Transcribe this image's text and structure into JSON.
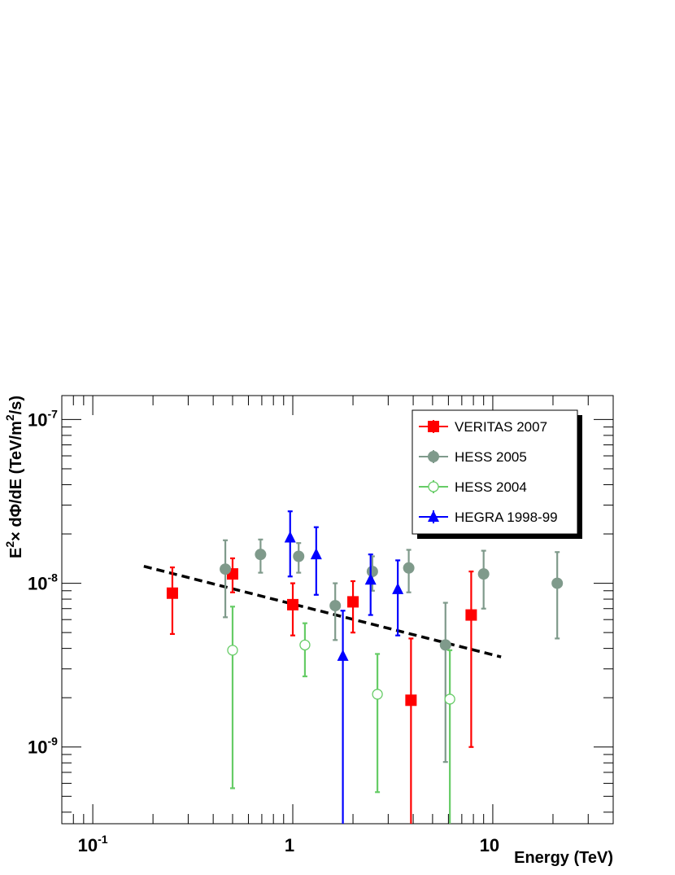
{
  "chart_data": {
    "type": "scatter",
    "x_scale": "log",
    "y_scale": "log",
    "xlim": [
      0.07,
      40
    ],
    "ylim": [
      3.4e-10,
      1.4e-07
    ],
    "xlabel": "Energy (TeV)",
    "ylabel": {
      "prefix": "E",
      "sup1": "2",
      "middle": "× dΦ/dE (TeV/m",
      "sup2": "2",
      "suffix": "/s)"
    },
    "x_ticks": [
      {
        "value": 0.1,
        "base": "10",
        "exp": "-1"
      },
      {
        "value": 1,
        "base": "1",
        "exp": ""
      },
      {
        "value": 10,
        "base": "10",
        "exp": ""
      }
    ],
    "y_ticks": [
      {
        "value": 1e-07,
        "base": "10",
        "exp": "-7"
      },
      {
        "value": 1e-08,
        "base": "10",
        "exp": "-8"
      },
      {
        "value": 1e-09,
        "base": "10",
        "exp": "-9"
      }
    ],
    "legend_position": "top-right",
    "series": [
      {
        "name": "VERITAS 2007",
        "color": "#ff0000",
        "marker": "square-filled",
        "points": [
          {
            "x": 0.25,
            "y": 8.7e-09,
            "lo": 4.9e-09,
            "hi": 1.25e-08
          },
          {
            "x": 0.5,
            "y": 1.14e-08,
            "lo": 8.8e-09,
            "hi": 1.42e-08
          },
          {
            "x": 1.0,
            "y": 7.4e-09,
            "lo": 4.8e-09,
            "hi": 1e-08
          },
          {
            "x": 2.0,
            "y": 7.7e-09,
            "lo": 5e-09,
            "hi": 1.03e-08
          },
          {
            "x": 3.9,
            "y": 1.93e-09,
            "lo": 3.4e-10,
            "hi": 4.6e-09
          },
          {
            "x": 7.8,
            "y": 6.4e-09,
            "lo": 1e-09,
            "hi": 1.18e-08
          }
        ]
      },
      {
        "name": "HESS 2005",
        "color": "#7f9a8b",
        "marker": "circle-filled",
        "points": [
          {
            "x": 0.46,
            "y": 1.22e-08,
            "lo": 6.2e-09,
            "hi": 1.83e-08
          },
          {
            "x": 0.69,
            "y": 1.5e-08,
            "lo": 1.16e-08,
            "hi": 1.85e-08
          },
          {
            "x": 1.07,
            "y": 1.46e-08,
            "lo": 1.16e-08,
            "hi": 1.76e-08
          },
          {
            "x": 1.63,
            "y": 7.3e-09,
            "lo": 4.5e-09,
            "hi": 1e-08
          },
          {
            "x": 2.5,
            "y": 1.18e-08,
            "lo": 9e-09,
            "hi": 1.46e-08
          },
          {
            "x": 3.8,
            "y": 1.24e-08,
            "lo": 8.8e-09,
            "hi": 1.6e-08
          },
          {
            "x": 5.8,
            "y": 4.2e-09,
            "lo": 8.1e-10,
            "hi": 7.6e-09
          },
          {
            "x": 9.0,
            "y": 1.14e-08,
            "lo": 7e-09,
            "hi": 1.58e-08
          },
          {
            "x": 21.0,
            "y": 1e-08,
            "lo": 4.6e-09,
            "hi": 1.55e-08
          }
        ]
      },
      {
        "name": "HESS 2004",
        "color": "#66cc66",
        "marker": "circle-open",
        "points": [
          {
            "x": 0.5,
            "y": 3.9e-09,
            "lo": 5.6e-10,
            "hi": 7.2e-09
          },
          {
            "x": 1.15,
            "y": 4.2e-09,
            "lo": 2.7e-09,
            "hi": 5.7e-09
          },
          {
            "x": 2.65,
            "y": 2.1e-09,
            "lo": 5.3e-10,
            "hi": 3.7e-09
          },
          {
            "x": 6.1,
            "y": 1.96e-09,
            "lo": 3.4e-10,
            "hi": 3.9e-09
          }
        ]
      },
      {
        "name": "HEGRA 1998-99",
        "color": "#0000ff",
        "marker": "triangle-filled",
        "points": [
          {
            "x": 0.97,
            "y": 1.9e-08,
            "lo": 1.1e-08,
            "hi": 2.75e-08
          },
          {
            "x": 1.31,
            "y": 1.5e-08,
            "lo": 8.5e-09,
            "hi": 2.2e-08
          },
          {
            "x": 1.78,
            "y": 3.6e-09,
            "lo": 3.4e-10,
            "hi": 6.8e-09
          },
          {
            "x": 2.45,
            "y": 1.05e-08,
            "lo": 6.4e-09,
            "hi": 1.5e-08
          },
          {
            "x": 3.35,
            "y": 9.2e-09,
            "lo": 4.8e-09,
            "hi": 1.38e-08
          }
        ]
      }
    ],
    "fit_line": {
      "style": "dashed",
      "color": "#000000",
      "from": {
        "x": 0.18,
        "y": 1.27e-08
      },
      "to": {
        "x": 11.0,
        "y": 3.55e-09
      }
    }
  }
}
